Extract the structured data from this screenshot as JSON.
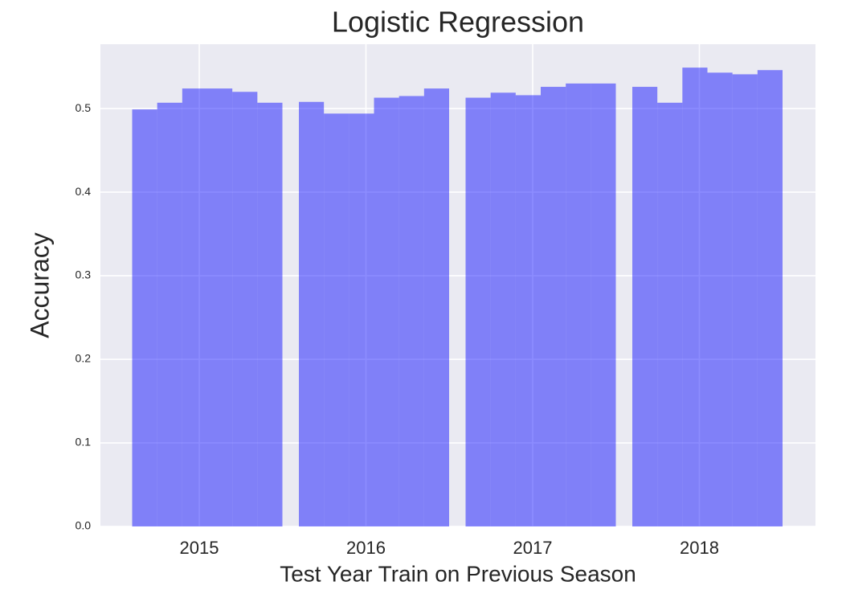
{
  "chart_data": {
    "type": "bar",
    "title": "Logistic Regression",
    "x_label": "Test Year Train on Previous Season",
    "y_label": "Accuracy",
    "categories": [
      "2015",
      "2016",
      "2017",
      "2018"
    ],
    "series": [
      {
        "color": "#0000ff",
        "values": [
          0.499,
          0.508,
          0.513,
          0.526
        ]
      },
      {
        "color": "#0000ff",
        "values": [
          0.507,
          0.494,
          0.519,
          0.507
        ]
      },
      {
        "color": "#0000ff",
        "values": [
          0.524,
          0.494,
          0.516,
          0.549
        ]
      },
      {
        "color": "#0000ff",
        "values": [
          0.524,
          0.513,
          0.526,
          0.543
        ]
      },
      {
        "color": "#0000ff",
        "values": [
          0.52,
          0.515,
          0.53,
          0.541
        ]
      },
      {
        "color": "#0000ff",
        "values": [
          0.507,
          0.524,
          0.53,
          0.546
        ]
      }
    ],
    "alpha": 0.45,
    "ylim": [
      0,
      0.577
    ],
    "yticks": [
      {
        "value": 0,
        "label": "0.0"
      },
      0.1,
      0.2,
      0.3,
      0.4,
      0.5
    ],
    "grid": true,
    "background": "#eaeaf2"
  }
}
